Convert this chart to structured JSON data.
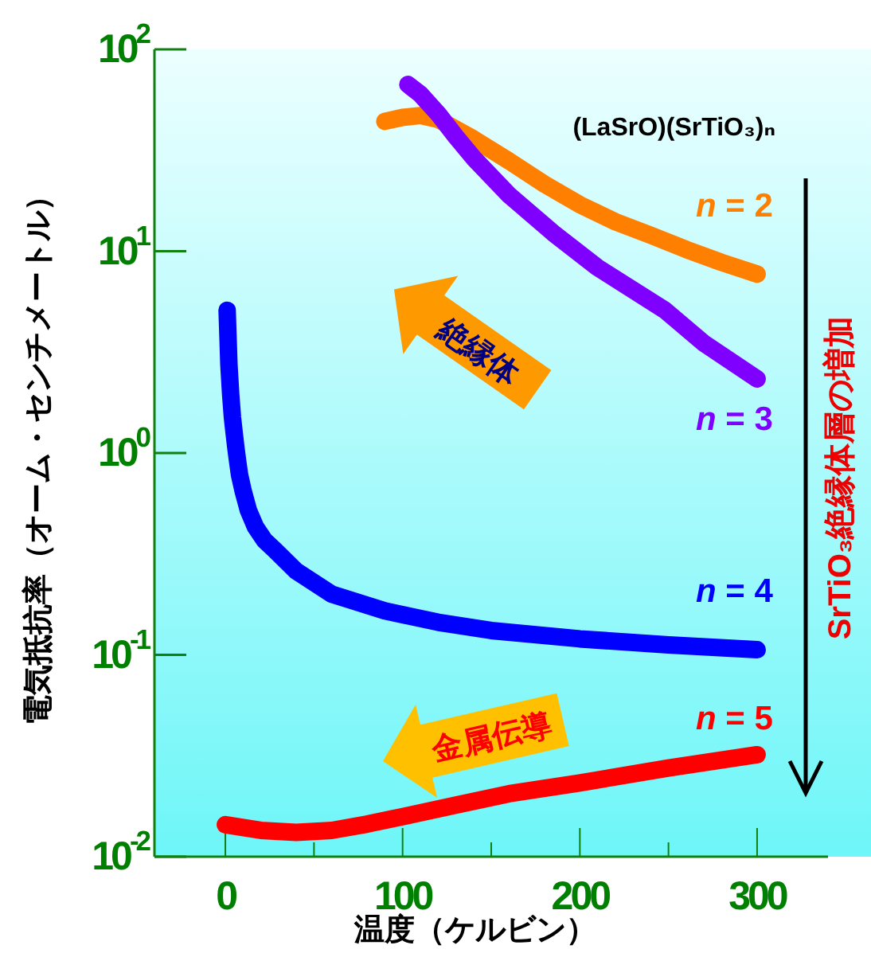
{
  "chart_data": {
    "type": "line",
    "xlabel": "温度（ケルビン）",
    "ylabel": "電気抵抗率（オーム・センチメートル）",
    "log": true,
    "grid": false,
    "legend": "right",
    "xlim": [
      -40,
      340
    ],
    "xticks": [
      0,
      {
        "value": 50,
        "label": null
      },
      100,
      {
        "value": 150,
        "label": null
      },
      200,
      {
        "value": 250,
        "label": null
      },
      300
    ],
    "ylim": [
      0.01,
      100
    ],
    "yticks": [
      {
        "value": 0.01,
        "label": "10$^{-2}$"
      },
      {
        "value": 0.1,
        "label": "10$^{-1}$"
      },
      {
        "value": 1,
        "label": "10$^{0}$"
      },
      {
        "value": 10,
        "label": "10$^{1}$"
      },
      {
        "value": 100,
        "label": "10$^{2}$"
      }
    ],
    "series": [
      {
        "name": "n = 2",
        "color": "#ff8000",
        "x": [
          90,
          100,
          110,
          120,
          140,
          160,
          180,
          200,
          220,
          240,
          260,
          280,
          300
        ],
        "values": [
          44,
          46,
          47,
          45,
          36,
          28,
          21.5,
          17,
          14,
          12,
          10.2,
          8.8,
          7.7
        ]
      },
      {
        "name": "n = 3",
        "color": "#8000ff",
        "x": [
          103,
          110,
          120,
          130,
          140,
          160,
          185,
          210,
          248,
          270,
          300
        ],
        "values": [
          67,
          60,
          48,
          37,
          29,
          19,
          12.3,
          8.3,
          5.1,
          3.5,
          2.33
        ]
      },
      {
        "name": "n = 4",
        "color": "#0000ff",
        "x": [
          1,
          2,
          3,
          4,
          5,
          6,
          7,
          8,
          10,
          13,
          17,
          22,
          28,
          40,
          60,
          90,
          120,
          150,
          200,
          250,
          300
        ],
        "values": [
          5.1,
          2.75,
          1.95,
          1.5,
          1.25,
          1.05,
          0.9,
          0.78,
          0.65,
          0.52,
          0.43,
          0.37,
          0.33,
          0.26,
          0.2,
          0.165,
          0.145,
          0.132,
          0.12,
          0.112,
          0.106
        ]
      },
      {
        "name": "n = 5",
        "color": "#ff0000",
        "x": [
          0,
          20,
          40,
          60,
          80,
          100,
          130,
          160,
          200,
          250,
          300
        ],
        "values": [
          0.0144,
          0.0135,
          0.0132,
          0.0135,
          0.0145,
          0.0158,
          0.018,
          0.0205,
          0.0232,
          0.0275,
          0.032
        ]
      }
    ],
    "annotations": [
      "(LaSrO)(SrTiO₃)ₙ",
      "絶縁体",
      "金属伝導",
      "SrTiO₃絶縁体層の増加"
    ]
  }
}
